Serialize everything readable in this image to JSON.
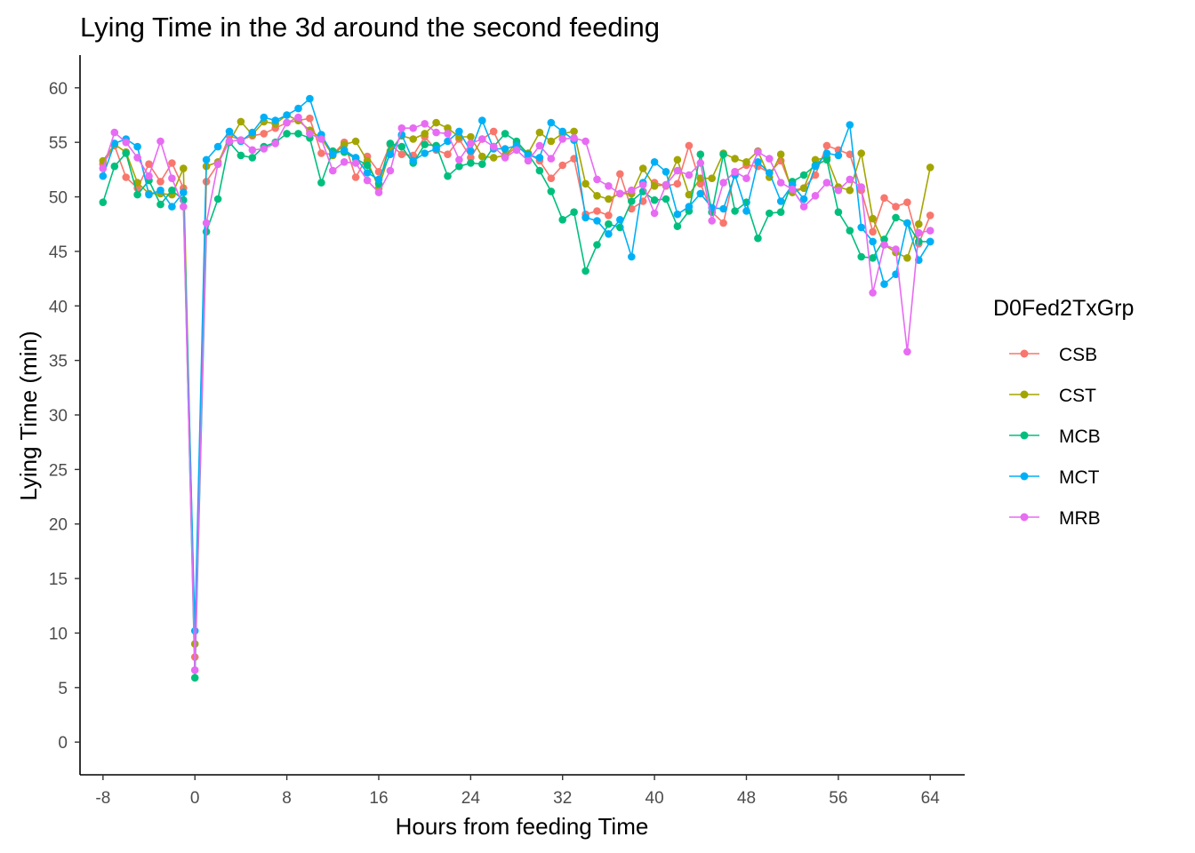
{
  "chart_data": {
    "type": "line",
    "title": "Lying Time in the 3d around the second feeding",
    "xlabel": "Hours from feeding Time",
    "ylabel": "Lying Time (min)",
    "xlim": [
      -10,
      67
    ],
    "ylim": [
      -3,
      63
    ],
    "xticks": [
      -8,
      0,
      8,
      16,
      24,
      32,
      40,
      48,
      56,
      64
    ],
    "yticks": [
      0,
      5,
      10,
      15,
      20,
      25,
      30,
      35,
      40,
      45,
      50,
      55,
      60
    ],
    "grid": false,
    "legend": {
      "title": "D0Fed2TxGrp",
      "position": "right"
    },
    "x": [
      -8,
      -7,
      -6,
      -5,
      -4,
      -3,
      -2,
      -1,
      0,
      1,
      2,
      3,
      4,
      5,
      6,
      7,
      8,
      9,
      10,
      11,
      12,
      13,
      14,
      15,
      16,
      17,
      18,
      19,
      20,
      21,
      22,
      23,
      24,
      25,
      26,
      27,
      28,
      29,
      30,
      31,
      32,
      33,
      34,
      35,
      36,
      37,
      38,
      39,
      40,
      41,
      42,
      43,
      44,
      45,
      46,
      47,
      48,
      49,
      50,
      51,
      52,
      53,
      54,
      55,
      56,
      57,
      58,
      59,
      60,
      61,
      62,
      63,
      64
    ],
    "series": [
      {
        "name": "CSB",
        "color": "#F8766D",
        "values": [
          53.0,
          54.7,
          51.8,
          50.8,
          53.0,
          51.4,
          53.1,
          50.8,
          7.8,
          51.4,
          53.0,
          55.6,
          55.2,
          55.6,
          55.8,
          56.3,
          56.8,
          57.0,
          57.2,
          54.0,
          53.9,
          55.0,
          51.8,
          53.7,
          52.3,
          54.8,
          53.9,
          53.8,
          55.5,
          54.3,
          53.9,
          55.3,
          53.6,
          55.3,
          56.0,
          53.7,
          54.6,
          54.0,
          53.3,
          51.7,
          52.9,
          53.5,
          48.4,
          48.7,
          48.3,
          52.1,
          48.9,
          49.6,
          51.3,
          51.0,
          51.2,
          54.7,
          51.2,
          48.6,
          47.6,
          52.3,
          52.9,
          52.8,
          52.2,
          53.3,
          50.6,
          50.8,
          52.0,
          54.7,
          54.3,
          53.9,
          50.6,
          46.8,
          49.9,
          49.1,
          49.5,
          45.7,
          48.3
        ]
      },
      {
        "name": "CST",
        "color": "#A3A500",
        "values": [
          53.3,
          54.8,
          54.1,
          51.3,
          50.3,
          50.3,
          50.2,
          52.6,
          9.0,
          52.8,
          53.2,
          55.1,
          56.9,
          55.7,
          56.9,
          56.7,
          57.5,
          57.0,
          56.1,
          55.4,
          53.8,
          54.8,
          55.1,
          53.3,
          50.8,
          54.2,
          55.6,
          55.3,
          55.8,
          56.8,
          56.3,
          55.5,
          55.5,
          53.7,
          53.6,
          53.8,
          54.9,
          54.0,
          55.9,
          55.1,
          55.8,
          56.0,
          51.2,
          50.1,
          49.8,
          50.3,
          50.3,
          52.6,
          51.0,
          51.1,
          53.4,
          50.2,
          51.7,
          51.7,
          54.0,
          53.5,
          53.2,
          54.2,
          51.8,
          53.9,
          50.4,
          50.8,
          53.4,
          53.6,
          50.9,
          50.6,
          54.0,
          48.0,
          45.6,
          44.9,
          44.4,
          47.5,
          52.7
        ]
      },
      {
        "name": "MCB",
        "color": "#00BF7D",
        "values": [
          49.5,
          52.8,
          54.0,
          50.2,
          51.5,
          49.3,
          50.6,
          49.7,
          5.9,
          46.8,
          49.8,
          55.0,
          53.8,
          53.6,
          54.6,
          55.0,
          55.8,
          55.8,
          55.4,
          51.3,
          54.2,
          54.1,
          53.5,
          52.9,
          51.2,
          54.9,
          54.6,
          53.1,
          54.8,
          54.7,
          51.9,
          52.8,
          53.1,
          53.0,
          54.6,
          55.8,
          55.1,
          53.9,
          52.4,
          50.5,
          47.9,
          48.6,
          43.2,
          45.6,
          47.5,
          47.2,
          49.6,
          50.5,
          49.7,
          49.8,
          47.3,
          48.7,
          53.9,
          48.6,
          53.9,
          48.7,
          49.5,
          46.2,
          48.5,
          48.6,
          51.4,
          52.0,
          52.9,
          53.4,
          48.6,
          46.9,
          44.5,
          44.4,
          46.1,
          48.1,
          47.6,
          45.9,
          45.9
        ]
      },
      {
        "name": "MCT",
        "color": "#00B0F6",
        "values": [
          51.9,
          54.9,
          55.3,
          54.6,
          50.2,
          50.6,
          49.1,
          50.4,
          10.2,
          53.4,
          54.6,
          56.0,
          55.1,
          55.9,
          57.3,
          57.0,
          57.5,
          58.1,
          59.0,
          55.7,
          53.9,
          54.3,
          53.6,
          52.2,
          51.6,
          53.9,
          55.7,
          53.3,
          54.0,
          54.4,
          55.1,
          56.0,
          54.2,
          57.0,
          54.4,
          54.4,
          54.7,
          53.8,
          53.6,
          56.8,
          56.0,
          55.2,
          48.1,
          47.8,
          46.6,
          47.9,
          44.5,
          51.3,
          53.2,
          52.3,
          48.4,
          49.1,
          50.3,
          49.0,
          48.9,
          52.0,
          48.7,
          53.2,
          52.2,
          49.6,
          51.1,
          49.8,
          52.8,
          54.0,
          53.8,
          56.6,
          47.2,
          45.9,
          42.0,
          42.9,
          47.6,
          44.2,
          45.9
        ]
      },
      {
        "name": "MRB",
        "color": "#E76BF3",
        "values": [
          52.6,
          55.9,
          55.0,
          53.6,
          51.9,
          55.1,
          51.7,
          49.1,
          6.6,
          47.6,
          53.0,
          55.1,
          55.2,
          54.3,
          54.4,
          54.9,
          56.8,
          57.3,
          55.8,
          55.3,
          52.4,
          53.2,
          53.1,
          51.5,
          50.4,
          52.4,
          56.3,
          56.3,
          56.7,
          55.9,
          55.8,
          53.4,
          54.9,
          55.3,
          54.6,
          53.6,
          54.3,
          53.3,
          54.7,
          53.5,
          55.3,
          55.4,
          55.1,
          51.6,
          51.0,
          50.3,
          50.6,
          51.1,
          48.5,
          51.1,
          52.4,
          52.0,
          53.1,
          47.8,
          51.3,
          52.3,
          51.7,
          54.1,
          53.5,
          51.3,
          50.7,
          49.1,
          50.1,
          51.3,
          50.6,
          51.6,
          50.9,
          41.2,
          45.6,
          45.2,
          35.8,
          46.7,
          46.9
        ]
      }
    ]
  }
}
